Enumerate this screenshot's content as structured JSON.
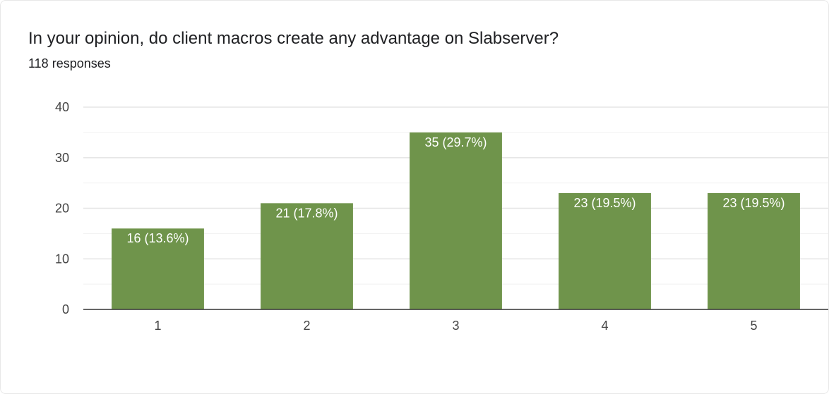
{
  "header": {
    "question": "In your opinion, do client macros create any advantage on Slabserver?",
    "responses": "118 responses"
  },
  "colors": {
    "bar": "#6f944b",
    "grid": "#e6e6e6",
    "axis": "#333333"
  },
  "chart_data": {
    "type": "bar",
    "title": "",
    "xlabel": "",
    "ylabel": "",
    "categories": [
      "1",
      "2",
      "3",
      "4",
      "5"
    ],
    "values": [
      16,
      21,
      35,
      23,
      23
    ],
    "data_labels": [
      "16 (13.6%)",
      "21 (17.8%)",
      "35 (29.7%)",
      "23 (19.5%)",
      "23 (19.5%)"
    ],
    "ylim": [
      0,
      40
    ],
    "yticks": [
      0,
      10,
      20,
      30,
      40
    ],
    "grid": true,
    "legend": "none"
  }
}
